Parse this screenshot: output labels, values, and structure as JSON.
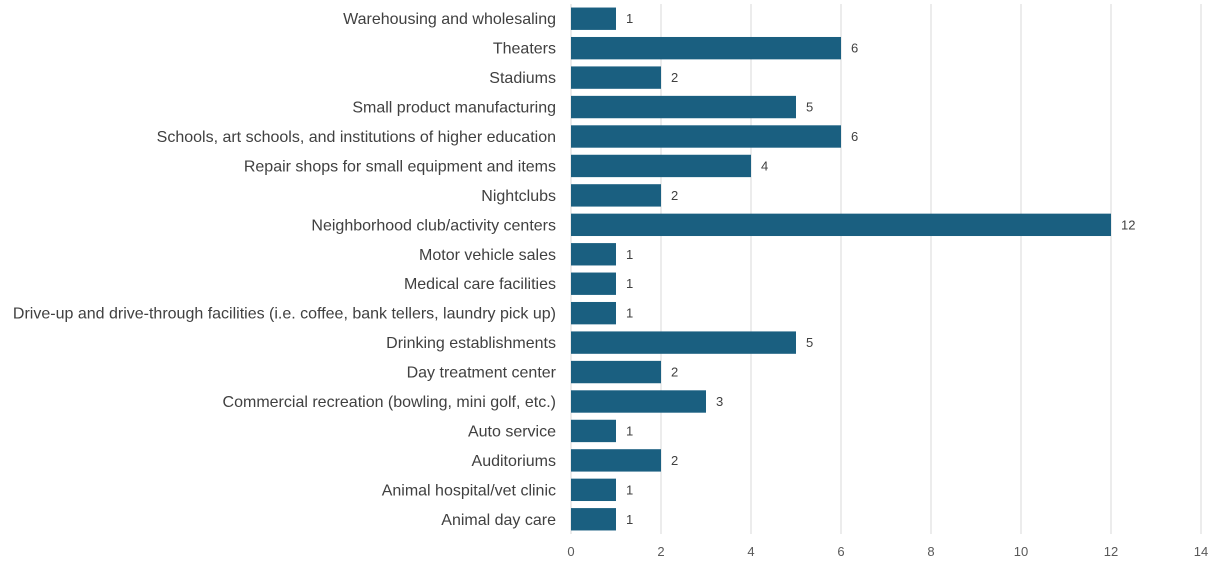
{
  "chart_data": {
    "type": "bar",
    "orientation": "horizontal",
    "title": "",
    "xlabel": "",
    "ylabel": "",
    "xlim": [
      0,
      14
    ],
    "x_ticks": [
      "0",
      "2",
      "4",
      "6",
      "8",
      "10",
      "12",
      "14"
    ],
    "grid": "vertical",
    "legend": "none",
    "bar_color": "#1a5f80",
    "categories": [
      "Warehousing and wholesaling",
      "Theaters",
      "Stadiums",
      "Small product manufacturing",
      "Schools, art schools, and institutions of higher education",
      "Repair shops for small equipment and items",
      "Nightclubs",
      "Neighborhood club/activity centers",
      "Motor vehicle sales",
      "Medical care facilities",
      "Drive-up and drive-through facilities (i.e. coffee, bank tellers, laundry pick up)",
      "Drinking establishments",
      "Day treatment center",
      "Commercial recreation (bowling, mini golf, etc.)",
      "Auto service",
      "Auditoriums",
      "Animal hospital/vet clinic",
      "Animal day care"
    ],
    "values": [
      1,
      6,
      2,
      5,
      6,
      4,
      2,
      12,
      1,
      1,
      1,
      5,
      2,
      3,
      1,
      2,
      1,
      1
    ],
    "data_labels": [
      "1",
      "6",
      "2",
      "5",
      "6",
      "4",
      "2",
      "12",
      "1",
      "1",
      "1",
      "5",
      "2",
      "3",
      "1",
      "2",
      "1",
      "1"
    ]
  }
}
